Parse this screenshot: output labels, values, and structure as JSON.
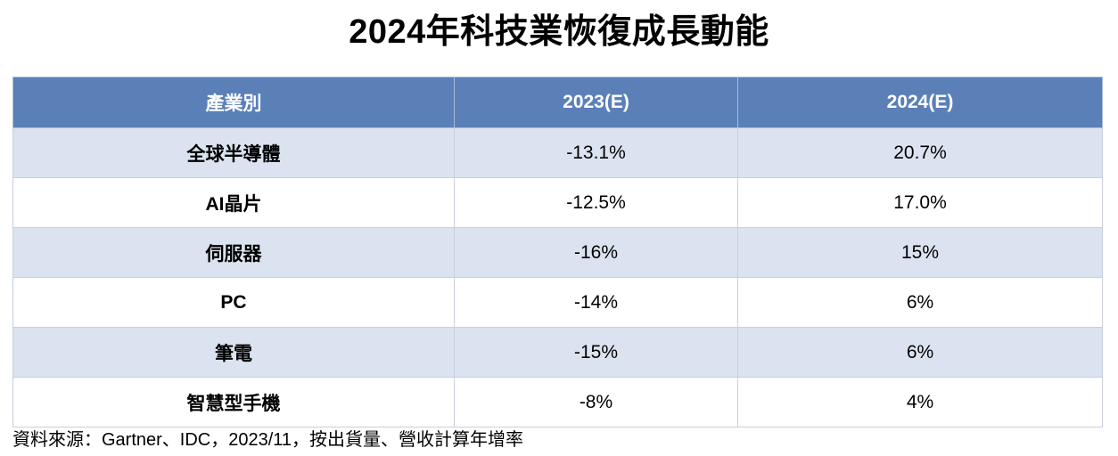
{
  "title": "2024年科技業恢復成長動能",
  "table": {
    "headers": [
      "產業別",
      "2023(E)",
      "2024(E)"
    ],
    "rows": [
      {
        "industry": "全球半導體",
        "y2023": "-13.1%",
        "y2024": "20.7%"
      },
      {
        "industry": "AI晶片",
        "y2023": "-12.5%",
        "y2024": "17.0%"
      },
      {
        "industry": "伺服器",
        "y2023": "-16%",
        "y2024": "15%"
      },
      {
        "industry": "PC",
        "y2023": "-14%",
        "y2024": "6%"
      },
      {
        "industry": "筆電",
        "y2023": "-15%",
        "y2024": "6%"
      },
      {
        "industry": "智慧型手機",
        "y2023": "-8%",
        "y2024": "4%"
      }
    ]
  },
  "source": "資料來源：Gartner、IDC，2023/11，按出貨量、營收計算年增率",
  "colors": {
    "header_bg": "#5b80b8",
    "band_bg": "#dce3f0"
  }
}
